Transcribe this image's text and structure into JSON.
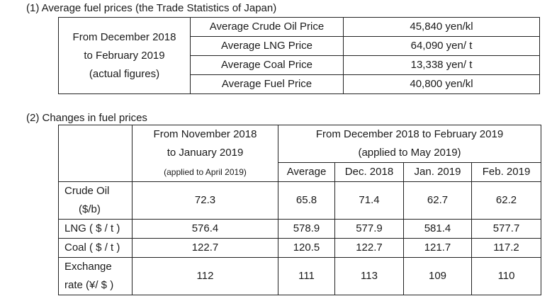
{
  "section1": {
    "heading": "(1)  Average fuel prices (the Trade Statistics of Japan)",
    "period_line1": "From December 2018",
    "period_line2": "to February 2019",
    "period_line3": "(actual figures)",
    "rows": [
      {
        "label": "Average Crude Oil Price",
        "value": "45,840 yen/kl"
      },
      {
        "label": "Average LNG Price",
        "value": "64,090 yen/ t"
      },
      {
        "label": "Average Coal Price",
        "value": "13,338 yen/ t"
      },
      {
        "label": "Average Fuel Price",
        "value": "40,800 yen/kl"
      }
    ]
  },
  "section2": {
    "heading": "(2)  Changes in fuel prices",
    "prev_period_line1": "From November 2018",
    "prev_period_line2": "to January 2019",
    "prev_period_note": "(applied to April 2019)",
    "curr_period_line1": "From December 2018 to February 2019",
    "curr_period_line2": "(applied to May 2019)",
    "columns": [
      "Average",
      "Dec. 2018",
      "Jan. 2019",
      "Feb. 2019"
    ],
    "rows": [
      {
        "label1": "Crude Oil",
        "label2": "($/b)",
        "prev": "72.3",
        "avg": "65.8",
        "m1": "71.4",
        "m2": "62.7",
        "m3": "62.2"
      },
      {
        "label1": "LNG ( $ / t )",
        "label2": "",
        "prev": "576.4",
        "avg": "578.9",
        "m1": "577.9",
        "m2": "581.4",
        "m3": "577.7"
      },
      {
        "label1": "Coal ( $ / t )",
        "label2": "",
        "prev": "122.7",
        "avg": "120.5",
        "m1": "122.7",
        "m2": "121.7",
        "m3": "117.2"
      },
      {
        "label1": "Exchange",
        "label2": "rate (¥/ $ )",
        "prev": "112",
        "avg": "111",
        "m1": "113",
        "m2": "109",
        "m3": "110"
      }
    ]
  }
}
